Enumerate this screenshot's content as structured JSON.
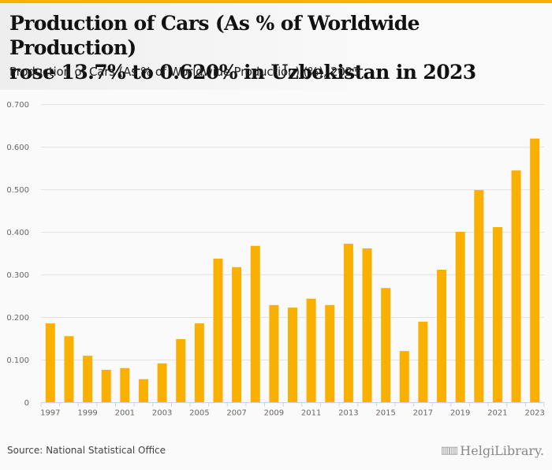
{
  "header": {
    "title_line1": "Production of Cars (As % of Worldwide Production)",
    "title_line2": "rose 13.7% to 0.620% in Uzbekistan in 2023",
    "subtitle": "Production of Cars (As % of Worldwide Production) (%), 2023"
  },
  "footer": {
    "source": "Source: National Statistical Office",
    "logo_text": "HelgiLibrary.",
    "logo_icon": "library-building-icon"
  },
  "colors": {
    "bar": "#f9b000",
    "accent": "#f9b000",
    "grid": "#e3e3e3",
    "axis": "#c9d3e6"
  },
  "chart_data": {
    "type": "bar",
    "title": "Production of Cars (As % of Worldwide Production) rose 13.7% to 0.620% in Uzbekistan in 2023",
    "subtitle": "Production of Cars (As % of Worldwide Production) (%), 2023",
    "xlabel": "",
    "ylabel": "",
    "categories": [
      "1997",
      "1998",
      "1999",
      "2000",
      "2001",
      "2002",
      "2003",
      "2004",
      "2005",
      "2006",
      "2007",
      "2008",
      "2009",
      "2010",
      "2011",
      "2012",
      "2013",
      "2014",
      "2015",
      "2016",
      "2017",
      "2018",
      "2019",
      "2020",
      "2021",
      "2022",
      "2023"
    ],
    "values": [
      0.186,
      0.156,
      0.11,
      0.077,
      0.081,
      0.055,
      0.092,
      0.149,
      0.186,
      0.338,
      0.318,
      0.368,
      0.229,
      0.223,
      0.244,
      0.229,
      0.373,
      0.362,
      0.269,
      0.121,
      0.19,
      0.312,
      0.401,
      0.499,
      0.412,
      0.545,
      0.62
    ],
    "x_tick_labels": [
      "1997",
      "1999",
      "2001",
      "2003",
      "2005",
      "2007",
      "2009",
      "2011",
      "2013",
      "2015",
      "2017",
      "2019",
      "2021",
      "2023"
    ],
    "y_tick_labels": [
      "0",
      "0.100",
      "0.200",
      "0.300",
      "0.400",
      "0.500",
      "0.600",
      "0.700"
    ],
    "y_ticks": [
      0,
      0.1,
      0.2,
      0.3,
      0.4,
      0.5,
      0.6,
      0.7
    ],
    "ylim": [
      0,
      0.7
    ],
    "grid": true,
    "legend": "none"
  }
}
